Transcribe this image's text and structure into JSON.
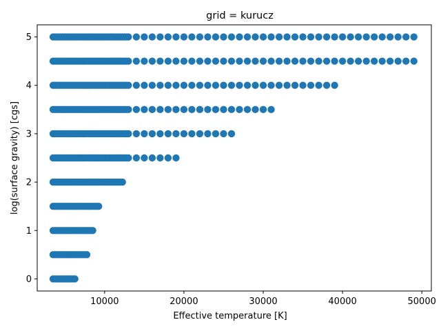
{
  "chart_data": {
    "type": "scatter",
    "title": "grid = kurucz",
    "xlabel": "Effective temperature [K]",
    "ylabel": "log(surface gravity) [cgs]",
    "xlim": [
      1500,
      51200
    ],
    "ylim": [
      -0.25,
      5.25
    ],
    "xticks": [
      10000,
      20000,
      30000,
      40000,
      50000
    ],
    "yticks": [
      0,
      1,
      2,
      3,
      4,
      5
    ],
    "grid": false,
    "marker_color": "#1f77b4",
    "series": [
      {
        "points": [
          {
            "logg": 0.0,
            "teff": [
              3500,
              3750,
              4000,
              4250,
              4500,
              4750,
              5000,
              5250,
              5500,
              5750,
              6000,
              6250
            ]
          },
          {
            "logg": 0.5,
            "teff": [
              3500,
              3750,
              4000,
              4250,
              4500,
              4750,
              5000,
              5250,
              5500,
              5750,
              6000,
              6250,
              6500,
              6750,
              7000,
              7250,
              7500,
              7750
            ]
          },
          {
            "logg": 1.0,
            "teff": [
              3500,
              3750,
              4000,
              4250,
              4500,
              4750,
              5000,
              5250,
              5500,
              5750,
              6000,
              6250,
              6500,
              6750,
              7000,
              7250,
              7500,
              7750,
              8000,
              8250,
              8500
            ]
          },
          {
            "logg": 1.5,
            "teff": [
              3500,
              3750,
              4000,
              4250,
              4500,
              4750,
              5000,
              5250,
              5500,
              5750,
              6000,
              6250,
              6500,
              6750,
              7000,
              7250,
              7500,
              7750,
              8000,
              8250,
              8500,
              8750,
              9000,
              9250
            ]
          },
          {
            "logg": 2.0,
            "teff": [
              3500,
              3750,
              4000,
              4250,
              4500,
              4750,
              5000,
              5250,
              5500,
              5750,
              6000,
              6250,
              6500,
              6750,
              7000,
              7250,
              7500,
              7750,
              8000,
              8250,
              8500,
              8750,
              9000,
              9250,
              9500,
              9750,
              10000,
              10250,
              10500,
              10750,
              11000,
              11250,
              11500,
              11750,
              12000,
              12250
            ]
          },
          {
            "logg": 2.5,
            "teff": [
              3500,
              3750,
              4000,
              4250,
              4500,
              4750,
              5000,
              5250,
              5500,
              5750,
              6000,
              6250,
              6500,
              6750,
              7000,
              7250,
              7500,
              7750,
              8000,
              8250,
              8500,
              8750,
              9000,
              9250,
              9500,
              9750,
              10000,
              10250,
              10500,
              10750,
              11000,
              11250,
              11500,
              11750,
              12000,
              12250,
              12500,
              12750,
              13000,
              14000,
              15000,
              16000,
              17000,
              18000,
              19000
            ]
          },
          {
            "logg": 3.0,
            "teff": [
              3500,
              3750,
              4000,
              4250,
              4500,
              4750,
              5000,
              5250,
              5500,
              5750,
              6000,
              6250,
              6500,
              6750,
              7000,
              7250,
              7500,
              7750,
              8000,
              8250,
              8500,
              8750,
              9000,
              9250,
              9500,
              9750,
              10000,
              10250,
              10500,
              10750,
              11000,
              11250,
              11500,
              11750,
              12000,
              12250,
              12500,
              12750,
              13000,
              14000,
              15000,
              16000,
              17000,
              18000,
              19000,
              20000,
              21000,
              22000,
              23000,
              24000,
              25000,
              26000
            ]
          },
          {
            "logg": 3.5,
            "teff": [
              3500,
              3750,
              4000,
              4250,
              4500,
              4750,
              5000,
              5250,
              5500,
              5750,
              6000,
              6250,
              6500,
              6750,
              7000,
              7250,
              7500,
              7750,
              8000,
              8250,
              8500,
              8750,
              9000,
              9250,
              9500,
              9750,
              10000,
              10250,
              10500,
              10750,
              11000,
              11250,
              11500,
              11750,
              12000,
              12250,
              12500,
              12750,
              13000,
              14000,
              15000,
              16000,
              17000,
              18000,
              19000,
              20000,
              21000,
              22000,
              23000,
              24000,
              25000,
              26000,
              27000,
              28000,
              29000,
              30000,
              31000
            ]
          },
          {
            "logg": 4.0,
            "teff": [
              3500,
              3750,
              4000,
              4250,
              4500,
              4750,
              5000,
              5250,
              5500,
              5750,
              6000,
              6250,
              6500,
              6750,
              7000,
              7250,
              7500,
              7750,
              8000,
              8250,
              8500,
              8750,
              9000,
              9250,
              9500,
              9750,
              10000,
              10250,
              10500,
              10750,
              11000,
              11250,
              11500,
              11750,
              12000,
              12250,
              12500,
              12750,
              13000,
              14000,
              15000,
              16000,
              17000,
              18000,
              19000,
              20000,
              21000,
              22000,
              23000,
              24000,
              25000,
              26000,
              27000,
              28000,
              29000,
              30000,
              31000,
              32000,
              33000,
              34000,
              35000,
              36000,
              37000,
              38000,
              39000
            ]
          },
          {
            "logg": 4.5,
            "teff": [
              3500,
              3750,
              4000,
              4250,
              4500,
              4750,
              5000,
              5250,
              5500,
              5750,
              6000,
              6250,
              6500,
              6750,
              7000,
              7250,
              7500,
              7750,
              8000,
              8250,
              8500,
              8750,
              9000,
              9250,
              9500,
              9750,
              10000,
              10250,
              10500,
              10750,
              11000,
              11250,
              11500,
              11750,
              12000,
              12250,
              12500,
              12750,
              13000,
              14000,
              15000,
              16000,
              17000,
              18000,
              19000,
              20000,
              21000,
              22000,
              23000,
              24000,
              25000,
              26000,
              27000,
              28000,
              29000,
              30000,
              31000,
              32000,
              33000,
              34000,
              35000,
              36000,
              37000,
              38000,
              39000,
              40000,
              41000,
              42000,
              43000,
              44000,
              45000,
              46000,
              47000,
              48000,
              49000
            ]
          },
          {
            "logg": 5.0,
            "teff": [
              3500,
              3750,
              4000,
              4250,
              4500,
              4750,
              5000,
              5250,
              5500,
              5750,
              6000,
              6250,
              6500,
              6750,
              7000,
              7250,
              7500,
              7750,
              8000,
              8250,
              8500,
              8750,
              9000,
              9250,
              9500,
              9750,
              10000,
              10250,
              10500,
              10750,
              11000,
              11250,
              11500,
              11750,
              12000,
              12250,
              12500,
              12750,
              13000,
              14000,
              15000,
              16000,
              17000,
              18000,
              19000,
              20000,
              21000,
              22000,
              23000,
              24000,
              25000,
              26000,
              27000,
              28000,
              29000,
              30000,
              31000,
              32000,
              33000,
              34000,
              35000,
              36000,
              37000,
              38000,
              39000,
              40000,
              41000,
              42000,
              43000,
              44000,
              45000,
              46000,
              47000,
              48000,
              49000
            ]
          }
        ]
      }
    ]
  }
}
